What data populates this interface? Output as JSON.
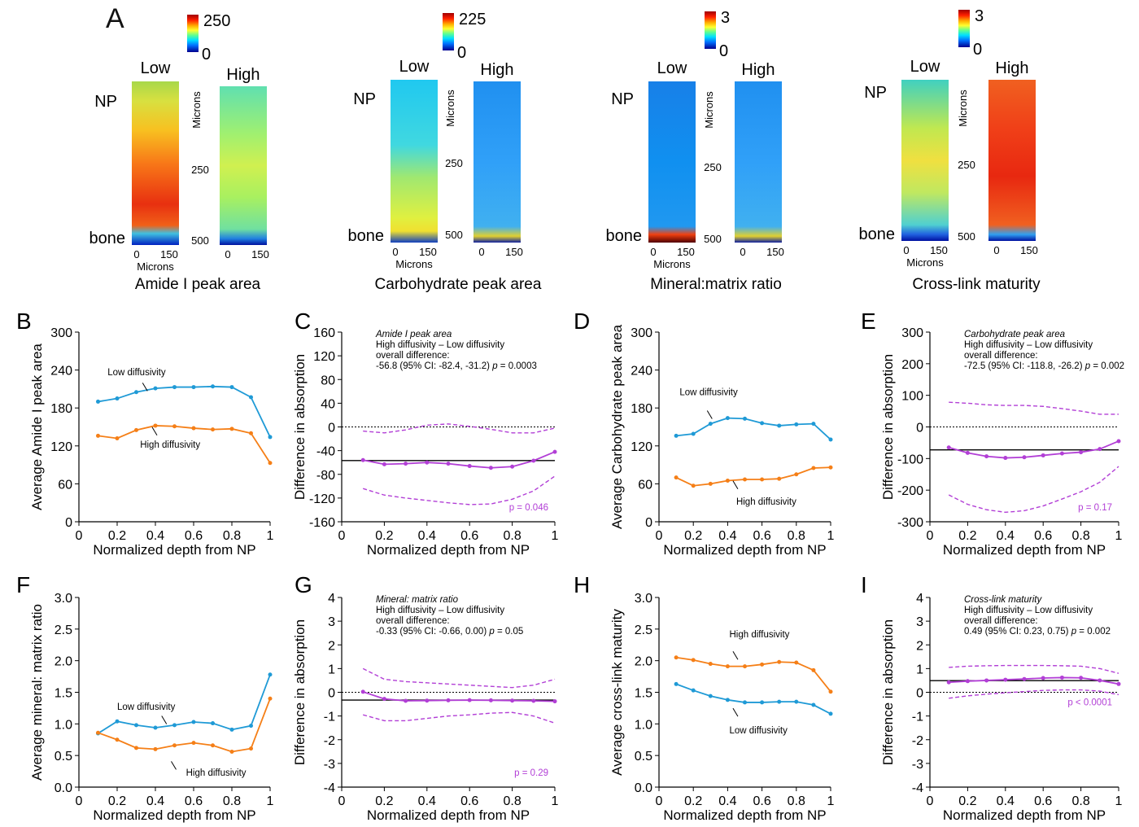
{
  "heatmaps": [
    {
      "letter": "A",
      "title": "Amide I peak area",
      "cb_max": "250",
      "cb_min": "0",
      "low": "Low",
      "high": "High",
      "np": "NP",
      "bone": "bone",
      "axis_label": "Microns",
      "tick_250": "250",
      "tick_500": "500",
      "x0": "0",
      "x150": "150",
      "xlabel": "Microns",
      "low_style": "red",
      "high_style": "greenyellow"
    },
    {
      "title": "Carbohydrate peak area",
      "cb_max": "225",
      "cb_min": "0",
      "low": "Low",
      "high": "High",
      "np": "NP",
      "bone": "bone",
      "axis_label": "Microns",
      "tick_250": "250",
      "tick_500": "500",
      "x0": "0",
      "x150": "150",
      "xlabel": "Microns",
      "low_style": "cyan",
      "high_style": "blue"
    },
    {
      "title": "Mineral:matrix ratio",
      "cb_max": "3",
      "cb_min": "0",
      "low": "Low",
      "high": "High",
      "np": "NP",
      "bone": "bone",
      "axis_label": "Microns",
      "tick_250": "250",
      "tick_500": "500",
      "x0": "0",
      "x150": "150",
      "xlabel": "Microns",
      "low_style": "deepblue",
      "high_style": "blue"
    },
    {
      "title": "Cross-link maturity",
      "cb_max": "3",
      "cb_min": "0",
      "low": "Low",
      "high": "High",
      "np": "NP",
      "bone": "bone",
      "axis_label": "Microns",
      "tick_250": "250",
      "tick_500": "500",
      "x0": "0",
      "x150": "150",
      "xlabel": "Microns",
      "low_style": "cyanyellow",
      "high_style": "red"
    }
  ],
  "colors": {
    "low": "#1f9ad6",
    "high": "#f57f17",
    "diff": "#b23fd6",
    "black": "#000000"
  },
  "chart_data": [
    {
      "letter": "B",
      "type": "line",
      "xlabel": "Normalized depth from NP",
      "ylabel": "Average Amide I peak area",
      "xlim": [
        0,
        1
      ],
      "ylim": [
        0,
        300
      ],
      "xticks": [
        0,
        0.2,
        0.4,
        0.6,
        0.8,
        1
      ],
      "xticklabels": [
        "0",
        "0.2",
        "0.4",
        "0.6",
        "0.8",
        "1"
      ],
      "yticks": [
        0,
        60,
        120,
        180,
        240,
        300
      ],
      "yticklabels": [
        "0",
        "60",
        "120",
        "180",
        "240",
        "300"
      ],
      "x": [
        0.1,
        0.2,
        0.3,
        0.4,
        0.5,
        0.6,
        0.7,
        0.8,
        0.9,
        1.0
      ],
      "series": [
        {
          "name": "Low diffusivity",
          "values": [
            190,
            195,
            205,
            211,
            213,
            213,
            214,
            213,
            197,
            134
          ]
        },
        {
          "name": "High diffusivity",
          "values": [
            136,
            132,
            145,
            152,
            151,
            148,
            146,
            147,
            140,
            93
          ]
        }
      ],
      "labels": [
        {
          "text": "Low diffusivity",
          "series": 0
        },
        {
          "text": "High diffusivity",
          "series": 1
        }
      ]
    },
    {
      "letter": "C",
      "type": "line",
      "xlabel": "Normalized depth from NP",
      "ylabel": "Difference in absorption",
      "xlim": [
        0,
        1
      ],
      "ylim": [
        -160,
        160
      ],
      "xticks": [
        0,
        0.2,
        0.4,
        0.6,
        0.8,
        1
      ],
      "xticklabels": [
        "0",
        "0.2",
        "0.4",
        "0.6",
        "0.8",
        "1"
      ],
      "yticks": [
        -160,
        -120,
        -80,
        -40,
        0,
        40,
        80,
        120,
        160
      ],
      "yticklabels": [
        "-160",
        "-120",
        "-80",
        "-40",
        "0",
        "40",
        "80",
        "120",
        "160"
      ],
      "x": [
        0.1,
        0.2,
        0.3,
        0.4,
        0.5,
        0.6,
        0.7,
        0.8,
        0.9,
        1.0
      ],
      "diff": [
        -56,
        -63,
        -62,
        -60,
        -62,
        -66,
        -69,
        -67,
        -57,
        -42
      ],
      "ci_upper": [
        -7,
        -10,
        -5,
        3,
        5,
        1,
        -4,
        -10,
        -10,
        -2
      ],
      "ci_lower": [
        -104,
        -115,
        -120,
        -124,
        -128,
        -131,
        -130,
        -122,
        -108,
        -83
      ],
      "overall": -56.8,
      "annot_title": "Amide I peak area",
      "annot_1": "High diffusivity – Low diffusivity",
      "annot_2": "overall difference:",
      "annot_3": "-56.8 (95% CI: -82.4, -31.2)",
      "annot_p": "p",
      "annot_pval": "= 0.0003",
      "pnote": "p = 0.046"
    },
    {
      "letter": "D",
      "type": "line",
      "xlabel": "Normalized depth from NP",
      "ylabel": "Average Carbohydrate peak area",
      "xlim": [
        0,
        1
      ],
      "ylim": [
        0,
        300
      ],
      "xticks": [
        0,
        0.2,
        0.4,
        0.6,
        0.8,
        1
      ],
      "xticklabels": [
        "0",
        "0.2",
        "0.4",
        "0.6",
        "0.8",
        "1"
      ],
      "yticks": [
        0,
        60,
        120,
        180,
        240,
        300
      ],
      "yticklabels": [
        "0",
        "60",
        "120",
        "180",
        "240",
        "300"
      ],
      "x": [
        0.1,
        0.2,
        0.3,
        0.4,
        0.5,
        0.6,
        0.7,
        0.8,
        0.9,
        1.0
      ],
      "series": [
        {
          "name": "Low diffusivity",
          "values": [
            136,
            139,
            155,
            164,
            163,
            156,
            152,
            154,
            155,
            130
          ]
        },
        {
          "name": "High diffusivity",
          "values": [
            70,
            57,
            60,
            65,
            67,
            67,
            68,
            75,
            85,
            86
          ]
        }
      ],
      "labels": [
        {
          "text": "Low diffusivity",
          "series": 0
        },
        {
          "text": "High diffusivity",
          "series": 1
        }
      ]
    },
    {
      "letter": "E",
      "type": "line",
      "xlabel": "Normalized depth from NP",
      "ylabel": "Difference in absorption",
      "xlim": [
        0,
        1
      ],
      "ylim": [
        -300,
        300
      ],
      "xticks": [
        0,
        0.2,
        0.4,
        0.6,
        0.8,
        1
      ],
      "xticklabels": [
        "0",
        "0.2",
        "0.4",
        "0.6",
        "0.8",
        "1"
      ],
      "yticks": [
        -300,
        -200,
        -100,
        0,
        100,
        200,
        300
      ],
      "yticklabels": [
        "-300",
        "-200",
        "-100",
        "0",
        "100",
        "200",
        "300"
      ],
      "x": [
        0.1,
        0.2,
        0.3,
        0.4,
        0.5,
        0.6,
        0.7,
        0.8,
        0.9,
        1.0
      ],
      "diff": [
        -65,
        -82,
        -93,
        -98,
        -96,
        -90,
        -84,
        -80,
        -70,
        -45
      ],
      "ci_upper": [
        78,
        75,
        70,
        68,
        68,
        65,
        58,
        50,
        40,
        40
      ],
      "ci_lower": [
        -215,
        -245,
        -262,
        -270,
        -265,
        -250,
        -228,
        -205,
        -175,
        -125
      ],
      "overall": -72.5,
      "annot_title": "Carbohydrate peak area",
      "annot_1": "High diffusivity – Low diffusivity",
      "annot_2": "overall difference:",
      "annot_3": "-72.5 (95% CI: -118.8, -26.2)",
      "annot_p": "p",
      "annot_pval": "= 0.002",
      "pnote": "p = 0.17"
    },
    {
      "letter": "F",
      "type": "line",
      "xlabel": "Normalized depth from NP",
      "ylabel": "Average mineral: matrix ratio",
      "xlim": [
        0,
        1
      ],
      "ylim": [
        0,
        3
      ],
      "xticks": [
        0,
        0.2,
        0.4,
        0.6,
        0.8,
        1
      ],
      "xticklabels": [
        "0",
        "0.2",
        "0.4",
        "0.6",
        "0.8",
        "1"
      ],
      "yticks": [
        0,
        0.5,
        1,
        1.5,
        2,
        2.5,
        3
      ],
      "yticklabels": [
        "0.0",
        "0.5",
        "1.0",
        "1.5",
        "2.0",
        "2.5",
        "3.0"
      ],
      "x": [
        0.1,
        0.2,
        0.3,
        0.4,
        0.5,
        0.6,
        0.7,
        0.8,
        0.9,
        1.0
      ],
      "series": [
        {
          "name": "Low diffusivity",
          "values": [
            0.85,
            1.04,
            0.98,
            0.94,
            0.98,
            1.03,
            1.01,
            0.91,
            0.97,
            1.78
          ]
        },
        {
          "name": "High diffusivity",
          "values": [
            0.86,
            0.75,
            0.62,
            0.6,
            0.66,
            0.7,
            0.66,
            0.56,
            0.61,
            1.4
          ]
        }
      ],
      "labels": [
        {
          "text": "Low diffusivity",
          "series": 0
        },
        {
          "text": "High diffusivity",
          "series": 1
        }
      ]
    },
    {
      "letter": "G",
      "type": "line",
      "xlabel": "Normalized depth from NP",
      "ylabel": "Difference in absorption",
      "xlim": [
        0,
        1
      ],
      "ylim": [
        -4,
        4
      ],
      "xticks": [
        0,
        0.2,
        0.4,
        0.6,
        0.8,
        1
      ],
      "xticklabels": [
        "0",
        "0.2",
        "0.4",
        "0.6",
        "0.8",
        "1"
      ],
      "yticks": [
        -4,
        -3,
        -2,
        -1,
        0,
        1,
        2,
        3,
        4
      ],
      "yticklabels": [
        "-4",
        "-3",
        "-2",
        "-1",
        "0",
        "1",
        "2",
        "3",
        "4"
      ],
      "x": [
        0.1,
        0.2,
        0.3,
        0.4,
        0.5,
        0.6,
        0.7,
        0.8,
        0.9,
        1.0
      ],
      "diff": [
        0.02,
        -0.28,
        -0.36,
        -0.35,
        -0.34,
        -0.33,
        -0.34,
        -0.35,
        -0.36,
        -0.38
      ],
      "ci_upper": [
        1.0,
        0.55,
        0.45,
        0.4,
        0.35,
        0.3,
        0.25,
        0.2,
        0.3,
        0.55
      ],
      "ci_lower": [
        -0.95,
        -1.2,
        -1.2,
        -1.1,
        -1.0,
        -0.95,
        -0.88,
        -0.85,
        -1.0,
        -1.3
      ],
      "overall": -0.33,
      "annot_title": "Mineral: matrix ratio",
      "annot_1": "High diffusivity – Low diffusivity",
      "annot_2": "overall difference:",
      "annot_3": "-0.33 (95% CI: -0.66, 0.00)",
      "annot_p": "p",
      "annot_pval": "= 0.05",
      "pnote": "p = 0.29"
    },
    {
      "letter": "H",
      "type": "line",
      "xlabel": "Normalized depth from NP",
      "ylabel": "Average cross-link maturity",
      "xlim": [
        0,
        1
      ],
      "ylim": [
        0,
        3
      ],
      "xticks": [
        0,
        0.2,
        0.4,
        0.6,
        0.8,
        1
      ],
      "xticklabels": [
        "0",
        "0.2",
        "0.4",
        "0.6",
        "0.8",
        "1"
      ],
      "yticks": [
        0,
        0.5,
        1,
        1.5,
        2,
        2.5,
        3
      ],
      "yticklabels": [
        "0.0",
        "0.5",
        "1.0",
        "1.5",
        "2.0",
        "2.5",
        "3.0"
      ],
      "x": [
        0.1,
        0.2,
        0.3,
        0.4,
        0.5,
        0.6,
        0.7,
        0.8,
        0.9,
        1.0
      ],
      "series": [
        {
          "name": "Low diffusivity",
          "values": [
            1.63,
            1.53,
            1.44,
            1.38,
            1.34,
            1.34,
            1.35,
            1.35,
            1.3,
            1.16
          ]
        },
        {
          "name": "High diffusivity",
          "values": [
            2.05,
            2.01,
            1.95,
            1.91,
            1.91,
            1.94,
            1.98,
            1.97,
            1.85,
            1.51
          ]
        }
      ],
      "labels": [
        {
          "text": "High diffusivity",
          "series": 1
        },
        {
          "text": "Low diffusivity",
          "series": 0
        }
      ]
    },
    {
      "letter": "I",
      "type": "line",
      "xlabel": "Normalized depth from NP",
      "ylabel": "Difference in absorption",
      "xlim": [
        0,
        1
      ],
      "ylim": [
        -4,
        4
      ],
      "xticks": [
        0,
        0.2,
        0.4,
        0.6,
        0.8,
        1
      ],
      "xticklabels": [
        "0",
        "0.2",
        "0.4",
        "0.6",
        "0.8",
        "1"
      ],
      "yticks": [
        -4,
        -3,
        -2,
        -1,
        0,
        1,
        2,
        3,
        4
      ],
      "yticklabels": [
        "-4",
        "-3",
        "-2",
        "-1",
        "0",
        "1",
        "2",
        "3",
        "4"
      ],
      "x": [
        0.1,
        0.2,
        0.3,
        0.4,
        0.5,
        0.6,
        0.7,
        0.8,
        0.9,
        1.0
      ],
      "diff": [
        0.42,
        0.47,
        0.5,
        0.53,
        0.56,
        0.6,
        0.62,
        0.61,
        0.5,
        0.35
      ],
      "ci_upper": [
        1.05,
        1.1,
        1.12,
        1.13,
        1.13,
        1.13,
        1.12,
        1.1,
        1.0,
        0.8
      ],
      "ci_lower": [
        -0.25,
        -0.15,
        -0.08,
        -0.02,
        0.03,
        0.08,
        0.1,
        0.1,
        0.05,
        -0.1
      ],
      "overall": 0.49,
      "annot_title": "Cross-link maturity",
      "annot_1": "High diffusivity – Low diffusivity",
      "annot_2": "overall difference:",
      "annot_3": "0.49 (95% CI: 0.23, 0.75)",
      "annot_p": "p",
      "annot_pval": "= 0.002",
      "pnote": "p < 0.0001"
    }
  ]
}
